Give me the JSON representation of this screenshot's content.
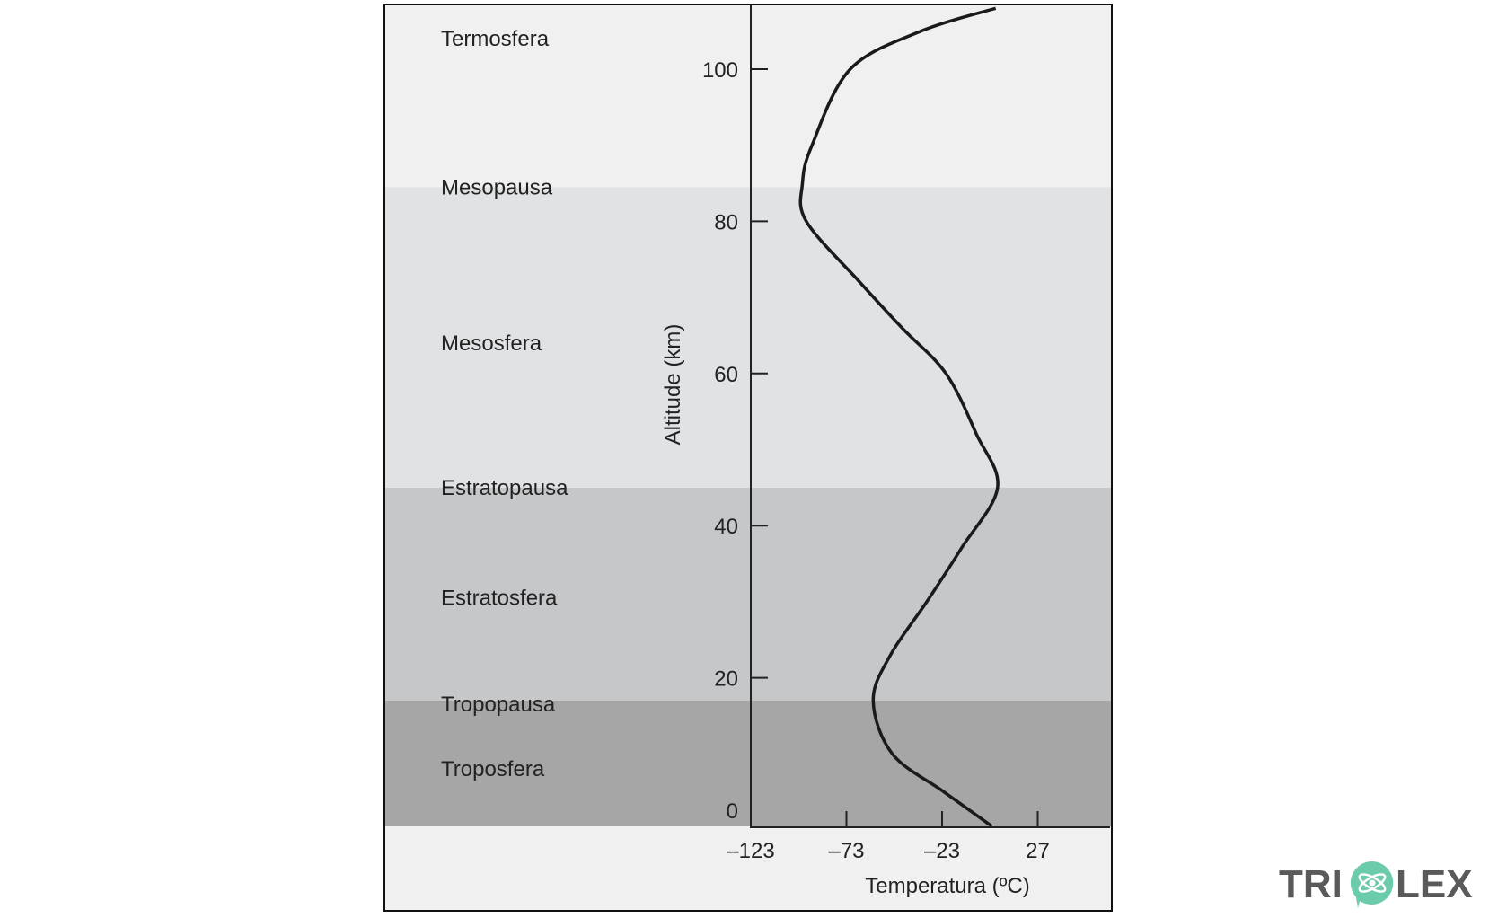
{
  "chart_data": {
    "type": "line",
    "title": "",
    "xlabel": "Temperatura (ºC)",
    "ylabel": "Altitude (km)",
    "xlim": [
      -123,
      60
    ],
    "ylim": [
      0,
      108
    ],
    "x_ticks": [
      -123,
      -73,
      -23,
      27
    ],
    "x_tick_labels": [
      "–123",
      "–73",
      "–23",
      "27"
    ],
    "y_ticks": [
      0,
      20,
      40,
      60,
      80,
      100
    ],
    "y_tick_labels": [
      "0",
      "20",
      "40",
      "60",
      "80",
      "100"
    ],
    "grid": false,
    "series": [
      {
        "name": "Temperatura",
        "color": "#1a1a1a",
        "points": [
          [
            3,
            0.5
          ],
          [
            -22,
            5
          ],
          [
            -49,
            10
          ],
          [
            -59,
            17
          ],
          [
            -50,
            23
          ],
          [
            -31,
            30
          ],
          [
            -13,
            37
          ],
          [
            6,
            45
          ],
          [
            -5,
            52
          ],
          [
            -21,
            60
          ],
          [
            -44,
            66
          ],
          [
            -66,
            72
          ],
          [
            -94,
            80
          ],
          [
            -96,
            85
          ],
          [
            -91,
            90
          ],
          [
            -71,
            100
          ],
          [
            -34,
            105
          ],
          [
            5,
            108
          ]
        ]
      }
    ],
    "layers": [
      {
        "name": "Troposfera",
        "from": 0,
        "to": 17,
        "color": "#a6a6a6"
      },
      {
        "name": "Estratosfera",
        "from": 17,
        "to": 45,
        "color": "#c6c7c9"
      },
      {
        "name": "Mesosfera",
        "from": 45,
        "to": 84.5,
        "color": "#e1e2e4"
      },
      {
        "name": "Termosfera",
        "from": 84.5,
        "to": 108,
        "color": "#f0f0f0"
      }
    ],
    "annotations": [
      {
        "text": "Termosfera",
        "alt": 104
      },
      {
        "text": "Mesopausa",
        "alt": 84.5
      },
      {
        "text": "Mesosfera",
        "alt": 64
      },
      {
        "text": "Estratopausa",
        "alt": 45
      },
      {
        "text": "Estratosfera",
        "alt": 30.5
      },
      {
        "text": "Tropopausa",
        "alt": 16.5
      },
      {
        "text": "Troposfera",
        "alt": 8
      }
    ]
  },
  "watermark": {
    "text_left": "TRI",
    "text_right": "LEX",
    "color": "#5a5a5a",
    "accent": "#6ccbaa"
  }
}
